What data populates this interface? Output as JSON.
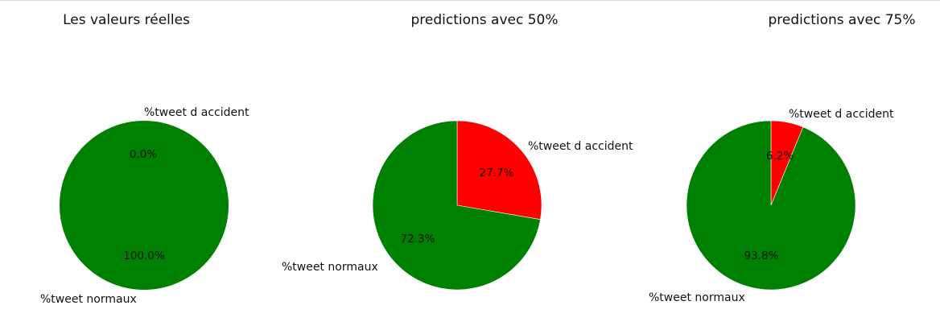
{
  "chart_data": [
    {
      "type": "pie",
      "title": "Les valeurs réelles",
      "slices": [
        {
          "label": "%tweet d accident",
          "value": 0.0,
          "pct_label": "0.0%",
          "color": "#ff0000"
        },
        {
          "label": "%tweet normaux",
          "value": 100.0,
          "pct_label": "100.0%",
          "color": "#008000"
        }
      ]
    },
    {
      "type": "pie",
      "title": "predictions avec 50%",
      "slices": [
        {
          "label": "%tweet d accident",
          "value": 27.7,
          "pct_label": "27.7%",
          "color": "#ff0000"
        },
        {
          "label": "%tweet normaux",
          "value": 72.3,
          "pct_label": "72.3%",
          "color": "#008000"
        }
      ]
    },
    {
      "type": "pie",
      "title": "predictions avec 75%",
      "slices": [
        {
          "label": "%tweet d accident",
          "value": 6.2,
          "pct_label": "6.2%",
          "color": "#ff0000"
        },
        {
          "label": "%tweet normaux",
          "value": 93.8,
          "pct_label": "93.8%",
          "color": "#008000"
        }
      ]
    }
  ]
}
